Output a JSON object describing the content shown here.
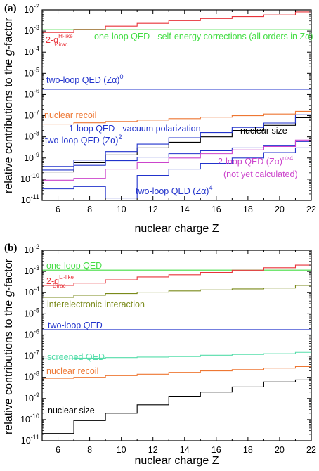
{
  "y_axis_label": "relative contributions to the g-factor",
  "chart_data": [
    {
      "type": "line",
      "panel_label": "(a)",
      "xlabel": "nuclear charge Z",
      "xlim": [
        5,
        22
      ],
      "xticks": [
        6,
        8,
        10,
        12,
        14,
        16,
        18,
        20,
        22
      ],
      "ylim_log10": [
        -11,
        -2
      ],
      "log_y": true,
      "grid": false,
      "series": [
        {
          "name": "2-g Dirac (H-like)",
          "color": "#e8333a",
          "steps": [
            [
              5,
              0.00085
            ],
            [
              7,
              0.0012
            ],
            [
              9,
              0.0017
            ],
            [
              11,
              0.0023
            ],
            [
              13,
              0.0031
            ],
            [
              15,
              0.0039
            ],
            [
              17,
              0.0048
            ],
            [
              19,
              0.0058
            ],
            [
              21,
              0.008
            ],
            [
              22,
              0.008
            ]
          ]
        },
        {
          "name": "one-loop QED - self-energy corrections (all orders in Zα)",
          "color": "#44dd44",
          "steps": [
            [
              5,
              0.00116
            ],
            [
              22,
              0.00116
            ]
          ]
        },
        {
          "name": "two-loop QED (Zα)^0",
          "color": "#2233cc",
          "steps": [
            [
              5,
              1.77e-06
            ],
            [
              22,
              1.77e-06
            ]
          ]
        },
        {
          "name": "nuclear recoil",
          "color": "#ee7733",
          "steps": [
            [
              5,
              4e-08
            ],
            [
              7,
              4.6e-08
            ],
            [
              9,
              5.3e-08
            ],
            [
              11,
              6.2e-08
            ],
            [
              13,
              7.2e-08
            ],
            [
              15,
              8.5e-08
            ],
            [
              17,
              1e-07
            ],
            [
              19,
              1.2e-07
            ],
            [
              21,
              1.6e-07
            ],
            [
              22,
              1.6e-07
            ]
          ]
        },
        {
          "name": "nuclear size",
          "color": "#000000",
          "steps": [
            [
              5,
              2.2e-10
            ],
            [
              7,
              6e-10
            ],
            [
              9,
              1.4e-09
            ],
            [
              11,
              3e-09
            ],
            [
              13,
              5.5e-09
            ],
            [
              15,
              1e-08
            ],
            [
              17,
              2e-08
            ],
            [
              19,
              3.5e-08
            ],
            [
              21,
              8e-08
            ],
            [
              22,
              8e-08
            ]
          ]
        },
        {
          "name": "1-loop QED - vacuum polarization",
          "color": "#2233cc",
          "steps": [
            [
              5,
              4e-10
            ],
            [
              7,
              8e-10
            ],
            [
              9,
              2e-09
            ],
            [
              11,
              4.5e-09
            ],
            [
              13,
              9e-09
            ],
            [
              15,
              1.6e-08
            ],
            [
              17,
              2.8e-08
            ],
            [
              19,
              4.5e-08
            ],
            [
              21,
              1.1e-07
            ],
            [
              22,
              1.1e-07
            ]
          ]
        },
        {
          "name": "two-loop QED (Zα)^2",
          "color": "#2233cc",
          "steps": [
            [
              5,
              2.7e-10
            ],
            [
              7,
              4.5e-10
            ],
            [
              9,
              7.5e-10
            ],
            [
              11,
              1.1e-09
            ],
            [
              13,
              1.6e-09
            ],
            [
              15,
              2.2e-09
            ],
            [
              17,
              3e-09
            ],
            [
              19,
              4e-09
            ],
            [
              21,
              6e-09
            ],
            [
              22,
              6e-09
            ]
          ]
        },
        {
          "name": "2-loop QED (Zα)^(n>4)",
          "color": "#cc44cc",
          "steps": [
            [
              5,
              9e-11
            ],
            [
              7,
              1.1e-10
            ],
            [
              9,
              3e-10
            ],
            [
              11,
              6e-10
            ],
            [
              13,
              1e-09
            ],
            [
              15,
              1.6e-09
            ],
            [
              17,
              2.4e-09
            ],
            [
              19,
              3.5e-09
            ],
            [
              21,
              7e-09
            ],
            [
              22,
              7e-09
            ]
          ]
        },
        {
          "name": "two-loop QED (Zα)^4",
          "color": "#2233cc",
          "steps": [
            [
              5,
              3.5e-11
            ],
            [
              7,
              4.5e-11
            ],
            [
              9,
              1.3e-11
            ],
            [
              11,
              1.5e-10
            ],
            [
              13,
              3e-10
            ],
            [
              15,
              5.5e-10
            ],
            [
              17,
              1e-09
            ],
            [
              19,
              1.8e-09
            ],
            [
              21,
              3e-09
            ],
            [
              22,
              3e-09
            ]
          ]
        }
      ],
      "annotations": [
        {
          "text": "2-g",
          "sup": "H-like",
          "sub": "Dirac",
          "color": "#e8333a"
        },
        {
          "text": "one-loop QED - self-energy corrections (all orders in Zα)",
          "color": "#44dd44"
        },
        {
          "text": "two-loop QED (Zα)",
          "sup": "0",
          "color": "#2233cc"
        },
        {
          "text": "nuclear recoil",
          "color": "#ee7733"
        },
        {
          "text": "1-loop QED - vacuum polarization",
          "color": "#2233cc"
        },
        {
          "text": "nuclear size",
          "color": "#000000"
        },
        {
          "text": "two-loop QED (Zα)",
          "sup": "2",
          "color": "#2233cc"
        },
        {
          "text": "2-loop QED (Zα)",
          "sup": "n>4",
          "color": "#cc44cc"
        },
        {
          "text": "(not yet calculated)",
          "color": "#cc44cc"
        },
        {
          "text": "two-loop QED (Zα)",
          "sup": "4",
          "color": "#2233cc"
        }
      ]
    },
    {
      "type": "line",
      "panel_label": "(b)",
      "xlabel": "nuclear charge Z",
      "xlim": [
        5,
        22
      ],
      "xticks": [
        6,
        8,
        10,
        12,
        14,
        16,
        18,
        20,
        22
      ],
      "ylim_log10": [
        -11,
        -2
      ],
      "log_y": true,
      "grid": false,
      "series": [
        {
          "name": "one-loop QED",
          "color": "#44dd44",
          "steps": [
            [
              5,
              0.00116
            ],
            [
              22,
              0.00116
            ]
          ]
        },
        {
          "name": "2-g Dirac (Li-like)",
          "color": "#e8333a",
          "steps": [
            [
              5,
              0.00022
            ],
            [
              7,
              0.00028
            ],
            [
              9,
              0.0004
            ],
            [
              11,
              0.00055
            ],
            [
              13,
              0.0007
            ],
            [
              15,
              0.0009
            ],
            [
              17,
              0.00115
            ],
            [
              19,
              0.0015
            ],
            [
              21,
              0.002
            ],
            [
              22,
              0.002
            ]
          ]
        },
        {
          "name": "interelectronic interaction",
          "color": "#7a8a1a",
          "steps": [
            [
              5,
              6e-05
            ],
            [
              7,
              7.5e-05
            ],
            [
              9,
              9e-05
            ],
            [
              11,
              0.000105
            ],
            [
              13,
              0.00012
            ],
            [
              15,
              0.000135
            ],
            [
              17,
              0.00015
            ],
            [
              19,
              0.000165
            ],
            [
              21,
              0.00022
            ],
            [
              22,
              0.00022
            ]
          ]
        },
        {
          "name": "two-loop QED",
          "color": "#2233cc",
          "steps": [
            [
              5,
              1.77e-06
            ],
            [
              22,
              1.77e-06
            ]
          ]
        },
        {
          "name": "screened QED",
          "color": "#55ddaa",
          "steps": [
            [
              5,
              7.5e-08
            ],
            [
              7,
              8e-08
            ],
            [
              9,
              8.5e-08
            ],
            [
              11,
              9e-08
            ],
            [
              13,
              9.5e-08
            ],
            [
              15,
              1.1e-07
            ],
            [
              17,
              1.2e-07
            ],
            [
              19,
              1.3e-07
            ],
            [
              21,
              1.5e-07
            ],
            [
              22,
              1.5e-07
            ]
          ]
        },
        {
          "name": "nuclear recoil",
          "color": "#ee7733",
          "steps": [
            [
              5,
              9e-09
            ],
            [
              7,
              1e-08
            ],
            [
              9,
              1.2e-08
            ],
            [
              11,
              1.4e-08
            ],
            [
              13,
              1.7e-08
            ],
            [
              15,
              2e-08
            ],
            [
              17,
              2.3e-08
            ],
            [
              19,
              2.7e-08
            ],
            [
              21,
              3.2e-08
            ],
            [
              22,
              3.2e-08
            ]
          ]
        },
        {
          "name": "nuclear size",
          "color": "#000000",
          "steps": [
            [
              5,
              2.2e-11
            ],
            [
              7,
              9e-11
            ],
            [
              9,
              2e-10
            ],
            [
              11,
              5e-10
            ],
            [
              13,
              1.2e-09
            ],
            [
              15,
              2e-09
            ],
            [
              17,
              3.5e-09
            ],
            [
              19,
              6e-09
            ],
            [
              21,
              7.5e-09
            ],
            [
              22,
              7.5e-09
            ]
          ]
        }
      ],
      "annotations": [
        {
          "text": "one-loop QED",
          "color": "#44dd44"
        },
        {
          "text": "2-g",
          "sup": "Li-like",
          "sub": "Dirac",
          "color": "#e8333a"
        },
        {
          "text": "interelectronic interaction",
          "color": "#7a8a1a"
        },
        {
          "text": "two-loop QED",
          "color": "#2233cc"
        },
        {
          "text": "screened QED",
          "color": "#55ddaa"
        },
        {
          "text": "nuclear recoil",
          "color": "#ee7733"
        },
        {
          "text": "nuclear size",
          "color": "#000000"
        }
      ]
    }
  ]
}
